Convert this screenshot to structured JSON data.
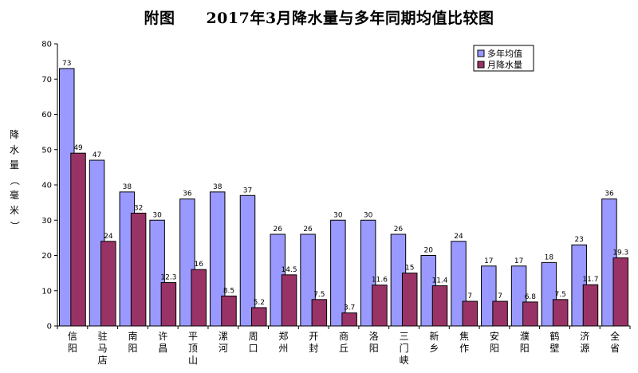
{
  "chart_data": {
    "type": "bar",
    "title": "附图　　2017年3月降水量与多年同期均值比较图",
    "ylabel": "降水量（毫米）",
    "ylim": [
      0,
      80
    ],
    "yticks": [
      0,
      10,
      20,
      30,
      40,
      50,
      60,
      70,
      80
    ],
    "categories": [
      "信阳",
      "驻马店",
      "南阳",
      "许昌",
      "平顶山",
      "漯河",
      "周口",
      "郑州",
      "开封",
      "商丘",
      "洛阳",
      "三门峡",
      "新乡",
      "焦作",
      "安阳",
      "濮阳",
      "鹤壁",
      "济源",
      "全省"
    ],
    "series": [
      {
        "name": "多年均值",
        "color": "#9999ff",
        "values": [
          73,
          47,
          38,
          30,
          36,
          38,
          37,
          26,
          26,
          30,
          30,
          26,
          20,
          24,
          17,
          17,
          18,
          23,
          36
        ],
        "labels": [
          "73",
          "47",
          "38",
          "30",
          "36",
          "38",
          "37",
          "26",
          "26",
          "30",
          "30",
          "26",
          "20",
          "24",
          "17",
          "17",
          "18",
          "23",
          "36"
        ]
      },
      {
        "name": "月降水量",
        "color": "#993366",
        "values": [
          49,
          24,
          32,
          12.3,
          16,
          8.5,
          5.2,
          14.5,
          7.5,
          3.7,
          11.6,
          15,
          11.4,
          7,
          7,
          6.8,
          7.5,
          11.7,
          19.3
        ],
        "labels": [
          "49",
          "24",
          "32",
          "12.3",
          "16",
          "8.5",
          "5.2",
          "14.5",
          "7.5",
          "3.7",
          "11.6",
          "15",
          "11.4",
          "7",
          "7",
          "6.8",
          "7.5",
          "11.7",
          "19.3"
        ]
      }
    ],
    "legend_position": "top-right",
    "grid": false
  }
}
